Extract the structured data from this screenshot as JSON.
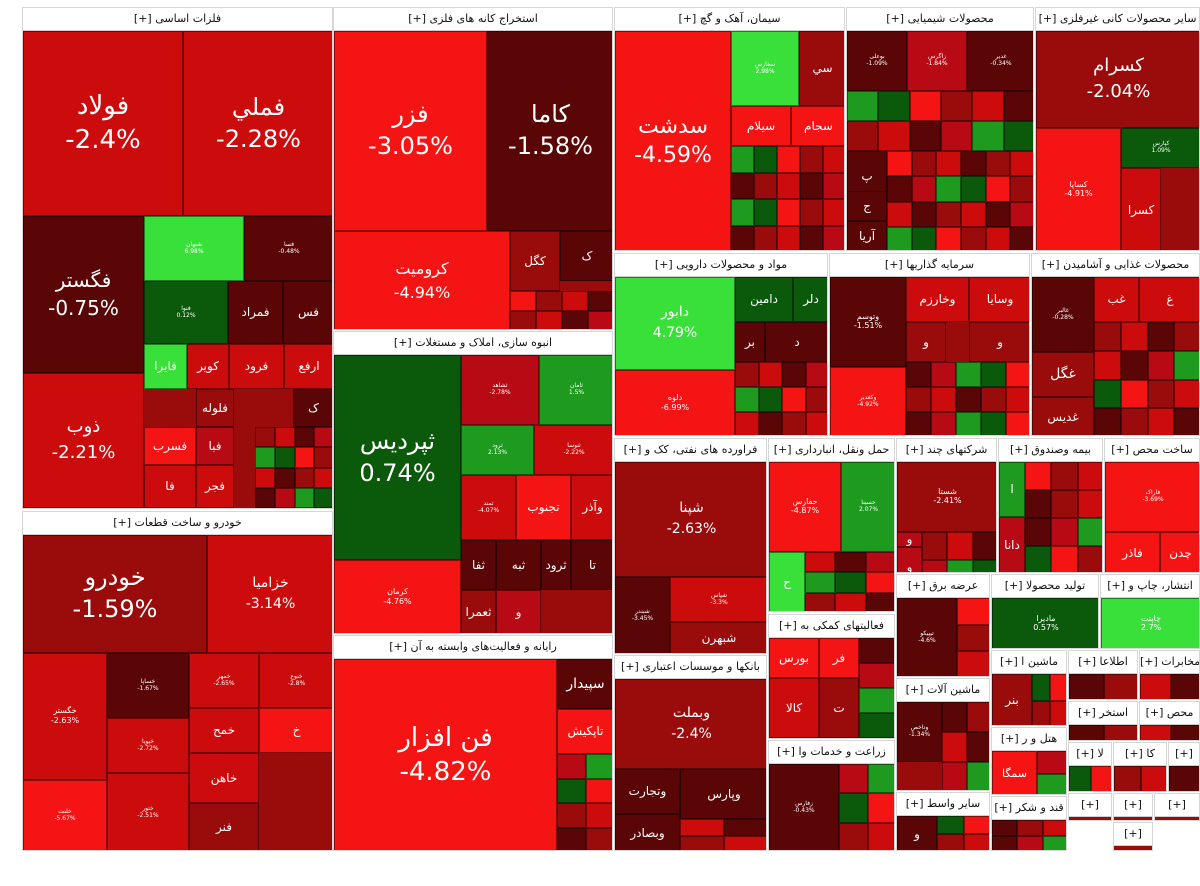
{
  "colors": {
    "strong_red": "#f41414",
    "red": "#cc0c0c",
    "mid_red": "#b80a14",
    "dark_red": "#9a0b0b",
    "maroon": "#5a0606",
    "dark_green": "#0b5a0b",
    "green": "#1e9a1e",
    "light_green": "#3ae03a"
  },
  "sectors": [
    {
      "title": "[+] فلزات اساسی"
    },
    {
      "title": "[+] استخراج کانه های فلزی"
    },
    {
      "title": "[+] سیمان، آهک و گچ"
    },
    {
      "title": "[+] محصولات شیمیایی"
    },
    {
      "title": "[+] سایر محصولات کانی غیرفلزی"
    },
    {
      "title": "[+] مواد و محصولات دارویی"
    },
    {
      "title": "[+] سرمایه گذاریها"
    },
    {
      "title": "[+] محصولات غذایی و آشامیدن"
    },
    {
      "title": "[+] انبوه سازی، املاک و مستغلات"
    },
    {
      "title": "[+] خودرو و ساخت قطعات"
    },
    {
      "title": "[+] رایانه و فعالیت‌های وابسته به آن"
    },
    {
      "title": "[+] فراورده های نفتی، کک و"
    },
    {
      "title": "[+] حمل ونقل، انبارداری"
    },
    {
      "title": "[+] شرکتهای چند"
    },
    {
      "title": "[+] بیمه وصندوق"
    },
    {
      "title": "[+] ساخت محص"
    },
    {
      "title": "[+] بانکها و موسسات اعتباری"
    },
    {
      "title": "[+] فعالیتهای کمکی به"
    },
    {
      "title": "[+] عرضه برق"
    },
    {
      "title": "[+] تولید محصولا"
    },
    {
      "title": "[+] انتشار، چاپ و"
    },
    {
      "title": "[+] ماشین آلات"
    },
    {
      "title": "[+] ماشین ا"
    },
    {
      "title": "[+] اطلاعا"
    },
    {
      "title": "[+] مخابرات"
    },
    {
      "title": "[+] زراعت و خدمات وا"
    },
    {
      "title": "[+] استخر"
    },
    {
      "title": "[+] محص"
    },
    {
      "title": "[+] هتل و ر"
    },
    {
      "title": "[+] سایر واسط"
    },
    {
      "title": "[+] قند و شکر"
    },
    {
      "title": "[+] لا"
    },
    {
      "title": "[+] کا"
    },
    {
      "title": "[+]"
    },
    {
      "title": "[+]"
    },
    {
      "title": "[+]"
    },
    {
      "title": "[+]"
    },
    {
      "title": "[+]"
    }
  ],
  "tiles": [
    {
      "symbol": "فولاد",
      "change": "-2.4%"
    },
    {
      "symbol": "فملي",
      "change": "-2.28%"
    },
    {
      "symbol": "فگستر",
      "change": "-0.75%"
    },
    {
      "symbol": "شبهان",
      "change": "6.98%"
    },
    {
      "symbol": "فسا",
      "change": "-0.48%"
    },
    {
      "symbol": "فنوا",
      "change": "0.12%"
    },
    {
      "symbol": "فمراد",
      "change": ""
    },
    {
      "symbol": "فس",
      "change": ""
    },
    {
      "symbol": "فايرا",
      "change": ""
    },
    {
      "symbol": "کوير",
      "change": ""
    },
    {
      "symbol": "فرود",
      "change": ""
    },
    {
      "symbol": "ارفع",
      "change": ""
    },
    {
      "symbol": "ذوب",
      "change": "-2.21%"
    },
    {
      "symbol": "فلوله",
      "change": ""
    },
    {
      "symbol": "فسرب",
      "change": ""
    },
    {
      "symbol": "فبا",
      "change": ""
    },
    {
      "symbol": "فا",
      "change": ""
    },
    {
      "symbol": "فجر",
      "change": ""
    },
    {
      "symbol": "ک",
      "change": ""
    },
    {
      "symbol": "فزر",
      "change": "-3.05%"
    },
    {
      "symbol": "کاما",
      "change": "-1.58%"
    },
    {
      "symbol": "کروميت",
      "change": "-4.94%"
    },
    {
      "symbol": "کگل",
      "change": ""
    },
    {
      "symbol": "ک",
      "change": ""
    },
    {
      "symbol": "سدشت",
      "change": "-4.59%"
    },
    {
      "symbol": "سفارس",
      "change": "2.98%"
    },
    {
      "symbol": "سي",
      "change": ""
    },
    {
      "symbol": "سيلام",
      "change": ""
    },
    {
      "symbol": "سجام",
      "change": ""
    },
    {
      "symbol": "بوعلی",
      "change": "-1.09%"
    },
    {
      "symbol": "زاگرس",
      "change": "-1.84%"
    },
    {
      "symbol": "غدیر",
      "change": "-0.34%"
    },
    {
      "symbol": "پ",
      "change": ""
    },
    {
      "symbol": "ج",
      "change": ""
    },
    {
      "symbol": "آريا",
      "change": ""
    },
    {
      "symbol": "کسرام",
      "change": "-2.04%"
    },
    {
      "symbol": "کپارس",
      "change": "1.09%"
    },
    {
      "symbol": "کساپا",
      "change": "-4.91%"
    },
    {
      "symbol": "کسرا",
      "change": ""
    },
    {
      "symbol": "دابور",
      "change": "4.79%"
    },
    {
      "symbol": "دامين",
      "change": ""
    },
    {
      "symbol": "دلر",
      "change": ""
    },
    {
      "symbol": "د",
      "change": ""
    },
    {
      "symbol": "بر",
      "change": ""
    },
    {
      "symbol": "دلوه",
      "change": "-6.99%"
    },
    {
      "symbol": "وتوسم",
      "change": "-1.51%"
    },
    {
      "symbol": "وخارزم",
      "change": ""
    },
    {
      "symbol": "وسايا",
      "change": ""
    },
    {
      "symbol": "و",
      "change": ""
    },
    {
      "symbol": "و",
      "change": ""
    },
    {
      "symbol": "وکغدیر",
      "change": "-4.92%"
    },
    {
      "symbol": "غب",
      "change": ""
    },
    {
      "symbol": "غ",
      "change": ""
    },
    {
      "symbol": "غالبر",
      "change": "-0.28%"
    },
    {
      "symbol": "غگل",
      "change": ""
    },
    {
      "symbol": "غديس",
      "change": ""
    },
    {
      "symbol": "ثپرديس",
      "change": "0.74%"
    },
    {
      "symbol": "ثشاهد",
      "change": "-2.78%"
    },
    {
      "symbol": "ثامان",
      "change": "1.5%"
    },
    {
      "symbol": "ثرود",
      "change": "2.13%"
    },
    {
      "symbol": "ثنوسا",
      "change": "-2.22%"
    },
    {
      "symbol": "ثمند",
      "change": "-4.07%"
    },
    {
      "symbol": "تجنوب",
      "change": ""
    },
    {
      "symbol": "وآذر",
      "change": ""
    },
    {
      "symbol": "کرمان",
      "change": "-4.76%"
    },
    {
      "symbol": "ثفا",
      "change": ""
    },
    {
      "symbol": "ثبه",
      "change": ""
    },
    {
      "symbol": "ثرود",
      "change": ""
    },
    {
      "symbol": "تا",
      "change": ""
    },
    {
      "symbol": "ثعمرا",
      "change": ""
    },
    {
      "symbol": "و",
      "change": ""
    },
    {
      "symbol": "خودرو",
      "change": "-1.59%"
    },
    {
      "symbol": "خزاميا",
      "change": "-3.14%"
    },
    {
      "symbol": "خگستر",
      "change": "-2.63%"
    },
    {
      "symbol": "خساپا",
      "change": "-1.67%"
    },
    {
      "symbol": "خمهر",
      "change": "-2.65%"
    },
    {
      "symbol": "خنوع",
      "change": "-2.8%"
    },
    {
      "symbol": "خپویا",
      "change": "-2.72%"
    },
    {
      "symbol": "خمح",
      "change": ""
    },
    {
      "symbol": "خ",
      "change": ""
    },
    {
      "symbol": "خلنت",
      "change": "-5.67%"
    },
    {
      "symbol": "خاهن",
      "change": ""
    },
    {
      "symbol": "ختور",
      "change": "-2.51%"
    },
    {
      "symbol": "فنر",
      "change": ""
    },
    {
      "symbol": "فن افزار",
      "change": "-4.82%"
    },
    {
      "symbol": "سپيدار",
      "change": ""
    },
    {
      "symbol": "تاپکيش",
      "change": ""
    },
    {
      "symbol": "شپنا",
      "change": "-2.63%"
    },
    {
      "symbol": "شبندر",
      "change": "-3.45%"
    },
    {
      "symbol": "شپاس",
      "change": "-3.3%"
    },
    {
      "symbol": "شبهرن",
      "change": ""
    },
    {
      "symbol": "حفارس",
      "change": "-4.87%"
    },
    {
      "symbol": "حسینا",
      "change": "2.07%"
    },
    {
      "symbol": "ح",
      "change": ""
    },
    {
      "symbol": "شستا",
      "change": "-2.41%"
    },
    {
      "symbol": "و",
      "change": ""
    },
    {
      "symbol": "و",
      "change": ""
    },
    {
      "symbol": "دانا",
      "change": ""
    },
    {
      "symbol": "ا",
      "change": ""
    },
    {
      "symbol": "فاراک",
      "change": "-3.69%"
    },
    {
      "symbol": "فاذر",
      "change": ""
    },
    {
      "symbol": "چدن",
      "change": ""
    },
    {
      "symbol": "وبملت",
      "change": "-2.4%"
    },
    {
      "symbol": "وپارس",
      "change": ""
    },
    {
      "symbol": "وتجارت",
      "change": ""
    },
    {
      "symbol": "وبصادر",
      "change": ""
    },
    {
      "symbol": "بورس",
      "change": ""
    },
    {
      "symbol": "فر",
      "change": ""
    },
    {
      "symbol": "کالا",
      "change": ""
    },
    {
      "symbol": "ت",
      "change": ""
    },
    {
      "symbol": "تيپيکو",
      "change": "-4.6%"
    },
    {
      "symbol": "مادیرا",
      "change": "0.57%"
    },
    {
      "symbol": "چاپتت",
      "change": "2.7%"
    },
    {
      "symbol": "بنر",
      "change": ""
    },
    {
      "symbol": "وتاخص",
      "change": "-1.34%"
    },
    {
      "symbol": "سمگا",
      "change": ""
    },
    {
      "symbol": "زفارس",
      "change": "-0.43%"
    },
    {
      "symbol": "و",
      "change": ""
    }
  ]
}
